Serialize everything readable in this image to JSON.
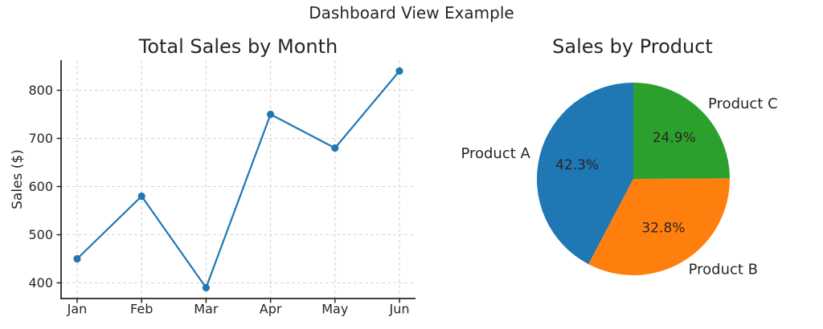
{
  "figure": {
    "title": "Dashboard View Example",
    "background": "#ffffff",
    "text_color": "#262626"
  },
  "chart_data": [
    {
      "type": "line",
      "title": "Total Sales by Month",
      "xlabel": "",
      "ylabel": "Sales ($)",
      "categories": [
        "Jan",
        "Feb",
        "Mar",
        "Apr",
        "May",
        "Jun"
      ],
      "series": [
        {
          "name": "Total Sales",
          "values": [
            450,
            580,
            390,
            750,
            680,
            840
          ]
        }
      ],
      "yticks": [
        400,
        500,
        600,
        700,
        800
      ],
      "ylim": [
        367.5,
        862.5
      ],
      "grid": true,
      "grid_style": "dashed",
      "grid_color": "#d6d6d6",
      "axis_color": "#262626",
      "line_color": "#1f77b4",
      "marker": "circle",
      "legend": "none"
    },
    {
      "type": "pie",
      "title": "Sales by Product",
      "slices": [
        {
          "label": "Product A",
          "pct": 42.3,
          "pct_label": "42.3%",
          "color": "#1f77b4"
        },
        {
          "label": "Product B",
          "pct": 32.8,
          "pct_label": "32.8%",
          "color": "#ff7f0e"
        },
        {
          "label": "Product C",
          "pct": 24.9,
          "pct_label": "24.9%",
          "color": "#2ca02c"
        }
      ],
      "start_angle": 90,
      "counterclockwise": true,
      "legend": "none"
    }
  ]
}
